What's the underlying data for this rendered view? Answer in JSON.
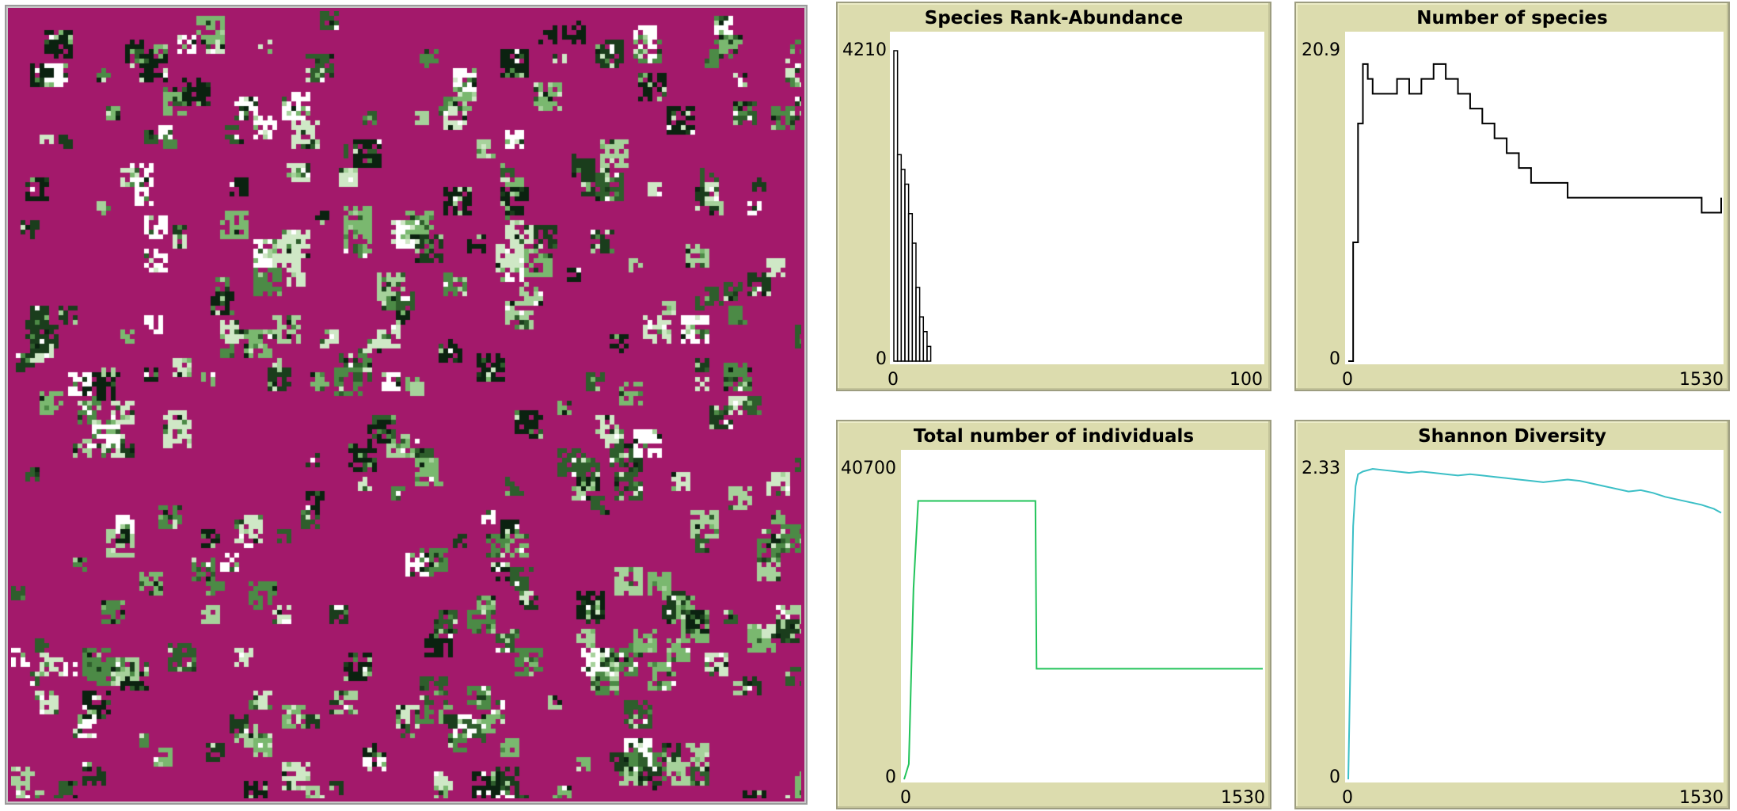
{
  "world": {
    "background_color": "#a3196b",
    "patch_colors": [
      "#ffffff",
      "#0b2210",
      "#1a3d1c",
      "#2e5e2c",
      "#4c8a46",
      "#7ab86f",
      "#a6d29b",
      "#cfe8c6"
    ]
  },
  "plots": {
    "rank_abundance": {
      "title": "Species Rank-Abundance",
      "xmin": "0",
      "xmax": "100",
      "ymin": "0",
      "ymax": "4210"
    },
    "num_species": {
      "title": "Number of species",
      "xmin": "0",
      "xmax": "1530",
      "ymin": "0",
      "ymax": "20.9"
    },
    "total_individuals": {
      "title": "Total number of individuals",
      "xmin": "0",
      "xmax": "1530",
      "ymin": "0",
      "ymax": "40700"
    },
    "shannon": {
      "title": "Shannon Diversity",
      "xmin": "0",
      "xmax": "1530",
      "ymin": "0",
      "ymax": "2.33"
    }
  },
  "chart_data": [
    {
      "type": "bar",
      "title": "Species Rank-Abundance",
      "xlim": [
        0,
        100
      ],
      "ylim": [
        0,
        4210
      ],
      "categories": [
        1,
        2,
        3,
        4,
        5,
        6,
        7,
        8,
        9,
        10
      ],
      "values": [
        4210,
        2800,
        2600,
        2400,
        2000,
        1600,
        1000,
        600,
        400,
        200
      ],
      "color": "#000000"
    },
    {
      "type": "line",
      "title": "Number of species",
      "xlim": [
        0,
        1530
      ],
      "ylim": [
        0,
        20.9
      ],
      "color": "#000000",
      "x": [
        0,
        20,
        40,
        60,
        80,
        100,
        150,
        200,
        250,
        300,
        350,
        400,
        450,
        500,
        550,
        600,
        650,
        700,
        750,
        800,
        850,
        900,
        950,
        1000,
        1050,
        1100,
        1150,
        1200,
        1250,
        1300,
        1350,
        1400,
        1450,
        1500,
        1530
      ],
      "y": [
        0,
        8,
        16,
        20,
        19,
        18,
        18,
        19,
        18,
        19,
        20,
        19,
        18,
        17,
        16,
        15,
        14,
        13,
        12,
        12,
        12,
        11,
        11,
        11,
        11,
        11,
        11,
        11,
        11,
        11,
        11,
        11,
        10,
        10,
        11
      ]
    },
    {
      "type": "line",
      "title": "Total number of individuals",
      "xlim": [
        0,
        1530
      ],
      "ylim": [
        0,
        40700
      ],
      "color": "#22c45a",
      "x": [
        0,
        20,
        40,
        60,
        80,
        560,
        565,
        1530
      ],
      "y": [
        0,
        2000,
        25000,
        36500,
        36500,
        36500,
        14500,
        14500
      ]
    },
    {
      "type": "line",
      "title": "Shannon Diversity",
      "xlim": [
        0,
        1530
      ],
      "ylim": [
        0,
        2.33
      ],
      "color": "#3bbfc6",
      "x": [
        0,
        10,
        20,
        30,
        40,
        60,
        100,
        150,
        200,
        250,
        300,
        350,
        400,
        450,
        500,
        550,
        600,
        650,
        700,
        750,
        800,
        850,
        900,
        950,
        1000,
        1050,
        1100,
        1150,
        1200,
        1250,
        1300,
        1350,
        1400,
        1450,
        1500,
        1530
      ],
      "y": [
        0,
        1.0,
        1.9,
        2.2,
        2.29,
        2.31,
        2.33,
        2.32,
        2.31,
        2.3,
        2.31,
        2.3,
        2.29,
        2.28,
        2.29,
        2.28,
        2.27,
        2.26,
        2.25,
        2.24,
        2.23,
        2.24,
        2.25,
        2.24,
        2.22,
        2.2,
        2.18,
        2.16,
        2.17,
        2.15,
        2.12,
        2.1,
        2.08,
        2.06,
        2.03,
        2.0
      ]
    }
  ]
}
